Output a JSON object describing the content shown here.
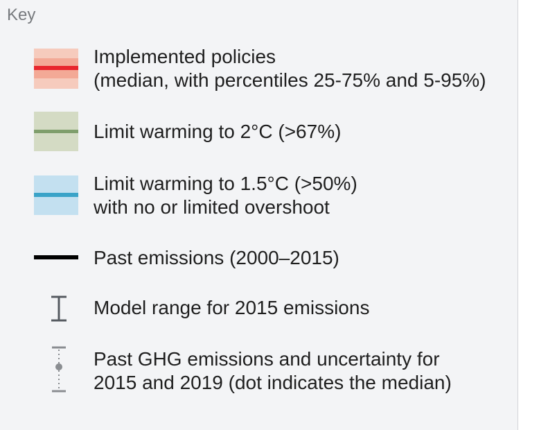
{
  "key": {
    "title": "Key",
    "items": [
      {
        "id": "implemented-policies",
        "lines": [
          "Implemented policies",
          "(median, with percentiles 25-75% and 5-95%)"
        ],
        "colors": {
          "outer": "#f6cbbd",
          "inner": "#f3a996",
          "line": "#e8262d"
        }
      },
      {
        "id": "limit-2c",
        "lines": [
          "Limit warming to 2°C (>67%)"
        ],
        "colors": {
          "band": "#d4dbc4",
          "line": "#7f9e6c"
        }
      },
      {
        "id": "limit-15c",
        "lines": [
          "Limit warming to 1.5°C (>50%)",
          "with no or limited overshoot"
        ],
        "colors": {
          "band": "#c3e0f0",
          "line": "#3aa3c8"
        }
      },
      {
        "id": "past-emissions",
        "lines": [
          "Past emissions (2000–2015)"
        ],
        "colors": {
          "line": "#000000"
        }
      },
      {
        "id": "model-range",
        "lines": [
          "Model range for 2015 emissions"
        ],
        "icon": "error-bar-icon"
      },
      {
        "id": "past-ghg",
        "lines": [
          "Past GHG emissions and uncertainty for",
          "2015 and 2019 (dot indicates the median)"
        ],
        "icon": "dotted-error-bar-icon"
      }
    ]
  }
}
